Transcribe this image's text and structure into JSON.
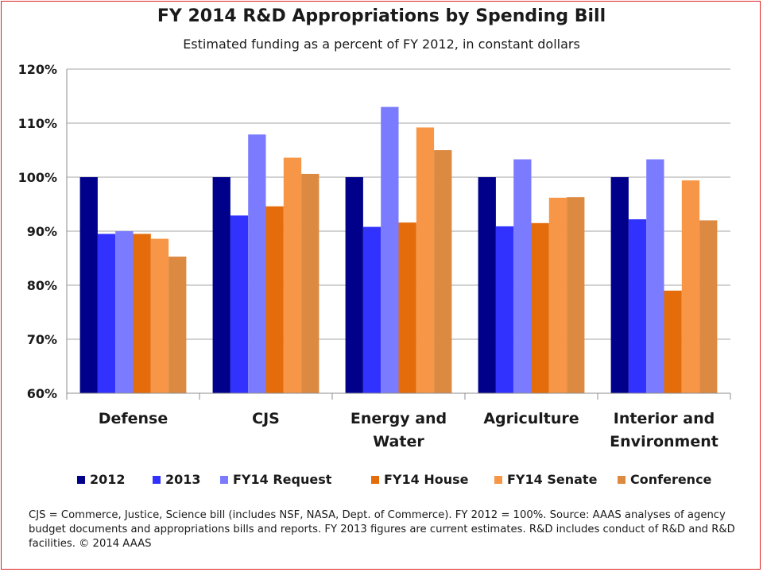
{
  "chart_data": {
    "type": "bar",
    "title": "FY 2014 R&D Appropriations by Spending Bill",
    "subtitle": "Estimated funding as a percent of FY 2012, in constant dollars",
    "categories": [
      [
        "Defense"
      ],
      [
        "CJS"
      ],
      [
        "Energy and",
        "Water"
      ],
      [
        "Agriculture"
      ],
      [
        "Interior and",
        "Environment"
      ]
    ],
    "ylim": [
      60,
      120
    ],
    "yticks": [
      60,
      70,
      80,
      90,
      100,
      110,
      120
    ],
    "ytick_suffix": "%",
    "grid": true,
    "legend_position": "bottom",
    "series": [
      {
        "name": "2012",
        "color": "#00008b",
        "values": [
          100,
          100,
          100,
          100,
          100
        ]
      },
      {
        "name": "2013",
        "color": "#3232ff",
        "values": [
          89.5,
          92.9,
          90.8,
          90.9,
          92.2
        ]
      },
      {
        "name": "FY14 Request",
        "color": "#7b7bff",
        "values": [
          90,
          107.9,
          113,
          103.3,
          103.3
        ]
      },
      {
        "name": "FY14 House",
        "color": "#e46c0a",
        "values": [
          89.5,
          94.6,
          91.6,
          91.5,
          79
        ]
      },
      {
        "name": "FY14 Senate",
        "color": "#f79646",
        "values": [
          88.6,
          103.6,
          109.2,
          96.2,
          99.4
        ]
      },
      {
        "name": "Conference",
        "color": "#dc8a42",
        "values": [
          85.3,
          100.6,
          105,
          96.3,
          92
        ]
      }
    ]
  },
  "footnote": "CJS = Commerce, Justice, Science bill (includes NSF, NASA, Dept. of Commerce). FY 2012 = 100%. Source: AAAS analyses of agency budget documents and appropriations bills and reports. FY 2013 figures are current estimates. R&D includes conduct of R&D and R&D facilities. © 2014 AAAS"
}
